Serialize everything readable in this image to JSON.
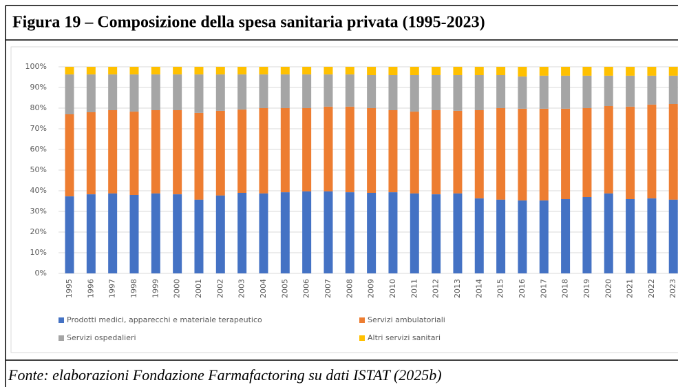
{
  "chart_data": {
    "type": "stacked-bar",
    "title": "Figura 19 – Composizione della spesa sanitaria privata (1995-2023)",
    "source": "Fonte: elaborazioni Fondazione Farmafactoring su dati ISTAT (2025b)",
    "categories": [
      "1995",
      "1996",
      "1997",
      "1998",
      "1999",
      "2000",
      "2001",
      "2002",
      "2003",
      "2004",
      "2005",
      "2006",
      "2007",
      "2008",
      "2009",
      "2010",
      "2011",
      "2012",
      "2013",
      "2014",
      "2015",
      "2016",
      "2017",
      "2018",
      "2019",
      "2020",
      "2021",
      "2022",
      "2023"
    ],
    "series": [
      {
        "name": "Prodotti medici, apparecchi e materiale terapeutico",
        "color": "#4472c4",
        "values": [
          37.3,
          38.3,
          38.7,
          38.0,
          38.7,
          38.3,
          35.7,
          37.7,
          39.0,
          38.7,
          39.3,
          39.7,
          39.7,
          39.3,
          39.0,
          39.3,
          38.7,
          38.3,
          38.7,
          36.3,
          35.7,
          35.3,
          35.3,
          36.0,
          37.0,
          38.7,
          36.0,
          36.3,
          35.7
        ]
      },
      {
        "name": "Servizi ambulatoriali",
        "color": "#ed7d31",
        "values": [
          39.7,
          39.7,
          40.3,
          40.3,
          40.3,
          40.7,
          42.0,
          41.0,
          40.3,
          41.3,
          40.7,
          40.3,
          41.0,
          41.4,
          41.0,
          39.7,
          39.6,
          40.7,
          40.0,
          42.7,
          44.3,
          44.4,
          44.4,
          43.7,
          43.0,
          42.3,
          44.7,
          45.4,
          46.3
        ]
      },
      {
        "name": "Servizi ospedalieri",
        "color": "#a5a5a5",
        "values": [
          19.3,
          18.3,
          17.3,
          18.0,
          17.3,
          17.3,
          18.6,
          17.6,
          17.0,
          16.3,
          16.3,
          16.3,
          15.6,
          15.6,
          16.0,
          17.0,
          17.7,
          17.0,
          17.3,
          17.0,
          16.0,
          15.6,
          16.0,
          16.0,
          15.7,
          14.7,
          15.0,
          14.0,
          13.7
        ]
      },
      {
        "name": "Altri servizi sanitari",
        "color": "#ffc000",
        "values": [
          3.7,
          3.7,
          3.7,
          3.7,
          3.7,
          3.7,
          3.7,
          3.7,
          3.7,
          3.7,
          3.7,
          3.7,
          3.7,
          3.7,
          4.0,
          4.0,
          4.0,
          4.0,
          4.0,
          4.0,
          4.0,
          4.7,
          4.3,
          4.3,
          4.3,
          4.3,
          4.3,
          4.3,
          4.3
        ]
      }
    ],
    "ylim": [
      0,
      100
    ],
    "yticks": [
      {
        "value": 0,
        "label": "0%"
      },
      {
        "value": 10,
        "label": "10%"
      },
      {
        "value": 20,
        "label": "20%"
      },
      {
        "value": 30,
        "label": "30%"
      },
      {
        "value": 40,
        "label": "40%"
      },
      {
        "value": 50,
        "label": "50%"
      },
      {
        "value": 60,
        "label": "60%"
      },
      {
        "value": 70,
        "label": "70%"
      },
      {
        "value": 80,
        "label": "80%"
      },
      {
        "value": 90,
        "label": "90%"
      },
      {
        "value": 100,
        "label": "100%"
      }
    ],
    "grid": true
  }
}
